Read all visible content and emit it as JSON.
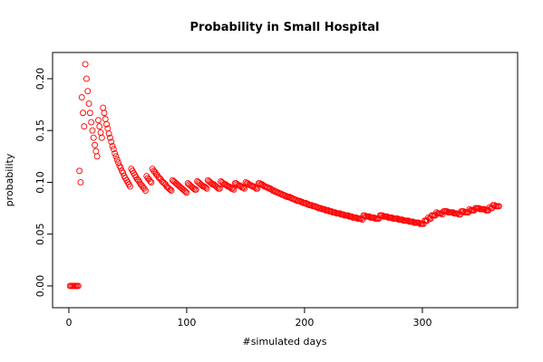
{
  "chart_data": {
    "type": "scatter",
    "title": "Probability in Small Hospital",
    "x_label": "#simulated days",
    "y_label": "probability",
    "color": "#ff0000",
    "xlim": [
      -13.8,
      380.8
    ],
    "ylim": [
      -0.021,
      0.2253
    ],
    "xticks": [
      0,
      100,
      200,
      300
    ],
    "yticks": [
      {
        "value": 0,
        "label": "0.00"
      },
      {
        "value": 0.05,
        "label": "0.05"
      },
      {
        "value": 0.1,
        "label": "0.10"
      },
      {
        "value": 0.15,
        "label": "0.15"
      },
      {
        "value": 0.2,
        "label": "0.20"
      }
    ],
    "x": [
      1,
      2,
      3,
      4,
      5,
      6,
      7,
      8,
      9,
      10,
      11,
      12,
      13,
      14,
      15,
      16,
      17,
      18,
      19,
      20,
      21,
      22,
      23,
      24,
      25,
      26,
      27,
      28,
      29,
      30,
      31,
      32,
      33,
      34,
      35,
      36,
      37,
      38,
      39,
      40,
      41,
      42,
      43,
      44,
      45,
      46,
      47,
      48,
      49,
      50,
      51,
      52,
      53,
      54,
      55,
      56,
      57,
      58,
      59,
      60,
      61,
      62,
      63,
      64,
      65,
      66,
      67,
      68,
      69,
      70,
      71,
      72,
      73,
      74,
      75,
      76,
      77,
      78,
      79,
      80,
      81,
      82,
      83,
      84,
      85,
      86,
      87,
      88,
      89,
      90,
      91,
      92,
      93,
      94,
      95,
      96,
      97,
      98,
      99,
      100,
      101,
      102,
      103,
      104,
      105,
      106,
      107,
      108,
      109,
      110,
      111,
      112,
      113,
      114,
      115,
      116,
      117,
      118,
      119,
      120,
      121,
      122,
      123,
      124,
      125,
      126,
      127,
      128,
      129,
      130,
      131,
      132,
      133,
      134,
      135,
      136,
      137,
      138,
      139,
      140,
      141,
      142,
      143,
      144,
      145,
      146,
      147,
      148,
      149,
      150,
      151,
      152,
      153,
      154,
      155,
      156,
      157,
      158,
      159,
      160,
      161,
      162,
      163,
      164,
      165,
      166,
      167,
      168,
      169,
      170,
      171,
      172,
      173,
      174,
      175,
      176,
      177,
      178,
      179,
      180,
      181,
      182,
      183,
      184,
      185,
      186,
      187,
      188,
      189,
      190,
      191,
      192,
      193,
      194,
      195,
      196,
      197,
      198,
      199,
      200,
      201,
      202,
      203,
      204,
      205,
      206,
      207,
      208,
      209,
      210,
      211,
      212,
      213,
      214,
      215,
      216,
      217,
      218,
      219,
      220,
      221,
      222,
      223,
      224,
      225,
      226,
      227,
      228,
      229,
      230,
      231,
      232,
      233,
      234,
      235,
      236,
      237,
      238,
      239,
      240,
      241,
      242,
      243,
      244,
      245,
      246,
      247,
      248,
      249,
      250,
      251,
      252,
      253,
      254,
      255,
      256,
      257,
      258,
      259,
      260,
      261,
      262,
      263,
      264,
      265,
      266,
      267,
      268,
      269,
      270,
      271,
      272,
      273,
      274,
      275,
      276,
      277,
      278,
      279,
      280,
      281,
      282,
      283,
      284,
      285,
      286,
      287,
      288,
      289,
      290,
      291,
      292,
      293,
      294,
      295,
      296,
      297,
      298,
      299,
      300,
      301,
      302,
      303,
      304,
      305,
      306,
      307,
      308,
      309,
      310,
      311,
      312,
      313,
      314,
      315,
      316,
      317,
      318,
      319,
      320,
      321,
      322,
      323,
      324,
      325,
      326,
      327,
      328,
      329,
      330,
      331,
      332,
      333,
      334,
      335,
      336,
      337,
      338,
      339,
      340,
      341,
      342,
      343,
      344,
      345,
      346,
      347,
      348,
      349,
      350,
      351,
      352,
      353,
      354,
      355,
      356,
      357,
      358,
      359,
      360,
      361,
      362,
      363,
      364,
      365
    ],
    "values": [
      0,
      0,
      0,
      0,
      0,
      0,
      0,
      0,
      0.111,
      0.1,
      0.182,
      0.167,
      0.154,
      0.214,
      0.2,
      0.188,
      0.176,
      0.167,
      0.158,
      0.15,
      0.143,
      0.136,
      0.13,
      0.125,
      0.16,
      0.154,
      0.148,
      0.143,
      0.172,
      0.167,
      0.161,
      0.156,
      0.152,
      0.147,
      0.143,
      0.139,
      0.135,
      0.132,
      0.128,
      0.125,
      0.122,
      0.119,
      0.116,
      0.114,
      0.111,
      0.109,
      0.106,
      0.104,
      0.102,
      0.1,
      0.098,
      0.096,
      0.113,
      0.111,
      0.109,
      0.107,
      0.105,
      0.103,
      0.102,
      0.1,
      0.098,
      0.097,
      0.095,
      0.094,
      0.092,
      0.106,
      0.104,
      0.103,
      0.101,
      0.1,
      0.113,
      0.111,
      0.11,
      0.108,
      0.107,
      0.105,
      0.104,
      0.103,
      0.101,
      0.1,
      0.099,
      0.098,
      0.096,
      0.095,
      0.094,
      0.093,
      0.092,
      0.102,
      0.101,
      0.1,
      0.099,
      0.098,
      0.097,
      0.096,
      0.095,
      0.094,
      0.093,
      0.092,
      0.091,
      0.09,
      0.099,
      0.098,
      0.097,
      0.096,
      0.095,
      0.094,
      0.093,
      0.093,
      0.101,
      0.1,
      0.099,
      0.098,
      0.097,
      0.096,
      0.096,
      0.095,
      0.094,
      0.102,
      0.101,
      0.1,
      0.099,
      0.098,
      0.098,
      0.097,
      0.096,
      0.095,
      0.094,
      0.094,
      0.101,
      0.1,
      0.099,
      0.098,
      0.098,
      0.097,
      0.096,
      0.096,
      0.095,
      0.094,
      0.094,
      0.093,
      0.099,
      0.099,
      0.098,
      0.097,
      0.097,
      0.096,
      0.095,
      0.095,
      0.094,
      0.1,
      0.099,
      0.099,
      0.098,
      0.097,
      0.097,
      0.096,
      0.096,
      0.095,
      0.094,
      0.094,
      0.099,
      0.099,
      0.098,
      0.098,
      0.097,
      0.096,
      0.096,
      0.095,
      0.095,
      0.094,
      0.094,
      0.093,
      0.092,
      0.092,
      0.091,
      0.091,
      0.09,
      0.09,
      0.089,
      0.089,
      0.088,
      0.088,
      0.087,
      0.087,
      0.086,
      0.086,
      0.086,
      0.085,
      0.085,
      0.084,
      0.084,
      0.083,
      0.083,
      0.082,
      0.082,
      0.082,
      0.081,
      0.081,
      0.08,
      0.08,
      0.08,
      0.079,
      0.079,
      0.078,
      0.078,
      0.078,
      0.077,
      0.077,
      0.077,
      0.076,
      0.076,
      0.075,
      0.075,
      0.075,
      0.074,
      0.074,
      0.074,
      0.073,
      0.073,
      0.073,
      0.072,
      0.072,
      0.072,
      0.071,
      0.071,
      0.071,
      0.07,
      0.07,
      0.07,
      0.07,
      0.069,
      0.069,
      0.069,
      0.068,
      0.068,
      0.068,
      0.068,
      0.067,
      0.067,
      0.067,
      0.066,
      0.066,
      0.066,
      0.066,
      0.065,
      0.065,
      0.065,
      0.065,
      0.064,
      0.068,
      0.068,
      0.067,
      0.067,
      0.067,
      0.067,
      0.066,
      0.066,
      0.066,
      0.066,
      0.065,
      0.065,
      0.065,
      0.065,
      0.068,
      0.068,
      0.068,
      0.067,
      0.067,
      0.067,
      0.067,
      0.066,
      0.066,
      0.066,
      0.066,
      0.065,
      0.065,
      0.065,
      0.065,
      0.065,
      0.064,
      0.064,
      0.064,
      0.064,
      0.063,
      0.063,
      0.063,
      0.063,
      0.063,
      0.062,
      0.062,
      0.062,
      0.062,
      0.061,
      0.061,
      0.061,
      0.061,
      0.061,
      0.06,
      0.06,
      0.06,
      0.06,
      0.063,
      0.063,
      0.063,
      0.066,
      0.065,
      0.065,
      0.068,
      0.068,
      0.068,
      0.068,
      0.071,
      0.07,
      0.07,
      0.07,
      0.07,
      0.069,
      0.072,
      0.072,
      0.072,
      0.072,
      0.071,
      0.071,
      0.071,
      0.071,
      0.071,
      0.07,
      0.07,
      0.07,
      0.07,
      0.069,
      0.069,
      0.072,
      0.072,
      0.072,
      0.071,
      0.071,
      0.071,
      0.071,
      0.074,
      0.073,
      0.073,
      0.073,
      0.073,
      0.075,
      0.075,
      0.075,
      0.075,
      0.074,
      0.074,
      0.074,
      0.074,
      0.074,
      0.073,
      0.073,
      0.073,
      0.076,
      0.075,
      0.075,
      0.078,
      0.078,
      0.077,
      0.077,
      0.077,
      0.077
    ]
  }
}
